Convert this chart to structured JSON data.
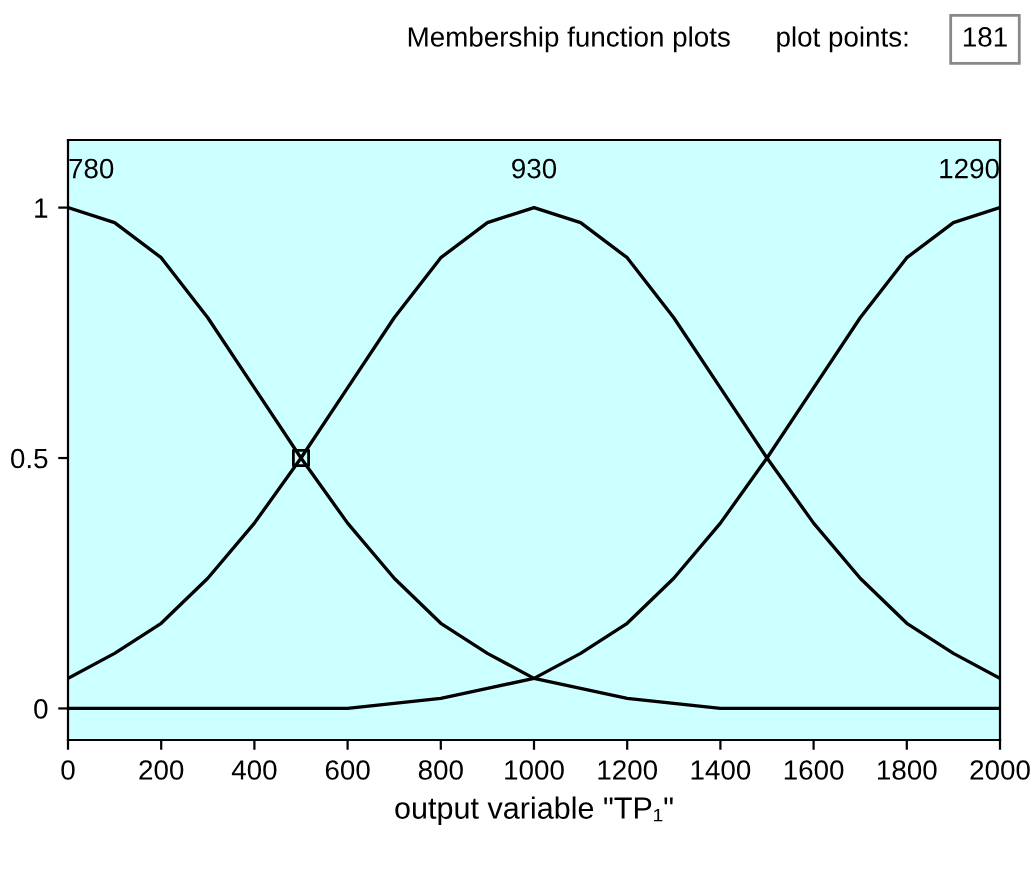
{
  "chart_data": {
    "type": "line",
    "title": "Membership function plots",
    "xlabel": "output variable \"TP₁\"",
    "annotations": [
      "plot points:",
      "181"
    ],
    "x": [
      0,
      100,
      200,
      300,
      400,
      500,
      600,
      700,
      800,
      900,
      1000,
      1100,
      1200,
      1300,
      1400,
      1500,
      1600,
      1700,
      1800,
      1900,
      2000
    ],
    "series": [
      {
        "name": "780",
        "color": "#000000",
        "values": [
          1,
          0.97,
          0.9,
          0.78,
          0.64,
          0.5,
          0.37,
          0.26,
          0.17,
          0.11,
          0.06,
          0.04,
          0.02,
          0.01,
          0,
          0,
          0,
          0,
          0,
          0,
          0
        ]
      },
      {
        "name": "930",
        "color": "#000000",
        "values": [
          0.06,
          0.11,
          0.17,
          0.26,
          0.37,
          0.5,
          0.64,
          0.78,
          0.9,
          0.97,
          1,
          0.97,
          0.9,
          0.78,
          0.64,
          0.5,
          0.37,
          0.26,
          0.17,
          0.11,
          0.06
        ]
      },
      {
        "name": "1290",
        "color": "#000000",
        "values": [
          0,
          0,
          0,
          0,
          0,
          0,
          0,
          0.01,
          0.02,
          0.04,
          0.06,
          0.11,
          0.17,
          0.26,
          0.37,
          0.5,
          0.64,
          0.78,
          0.9,
          0.97,
          1
        ]
      },
      {
        "type": "scatter",
        "marker": "square",
        "color": "#000000",
        "x": [
          500
        ],
        "values": [
          0.5
        ]
      }
    ],
    "xlim": [
      0,
      2000
    ],
    "xticks": [
      0,
      200,
      400,
      600,
      800,
      1000,
      1200,
      1400,
      1600,
      1800,
      2000
    ],
    "ylim": [
      -0.063,
      1.135
    ],
    "yticks": [
      0,
      0.5,
      1
    ],
    "grid": false
  }
}
